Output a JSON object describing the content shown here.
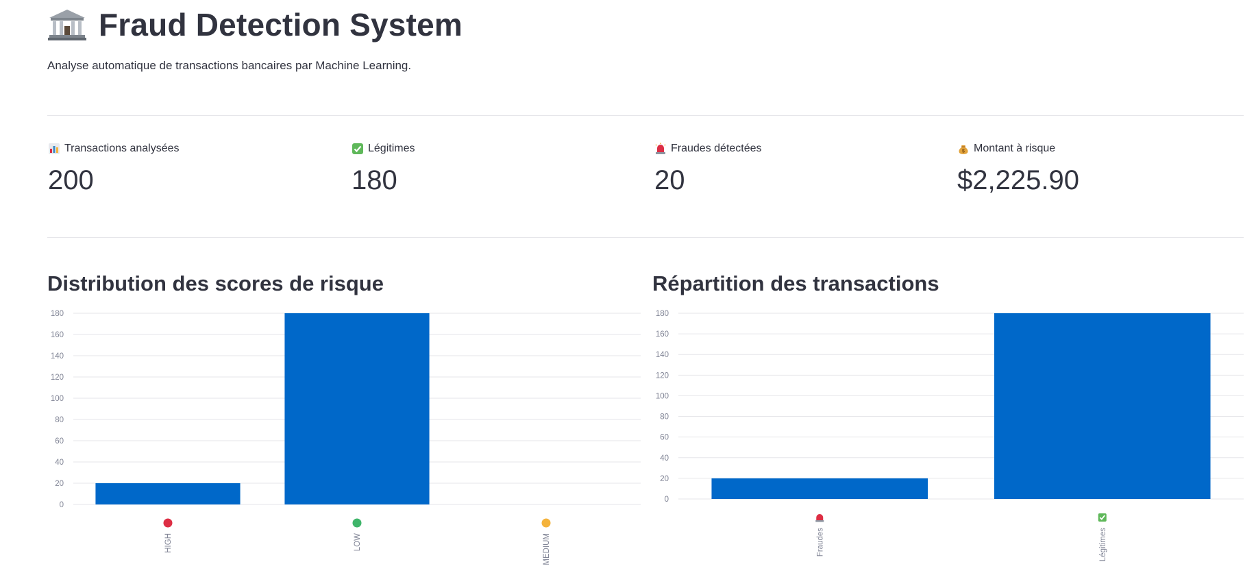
{
  "page": {
    "title": "Fraud Detection System",
    "subtitle": "Analyse automatique de transactions bancaires par Machine Learning."
  },
  "metrics": [
    {
      "icon": "bar-chart-icon",
      "label": "Transactions analysées",
      "value": "200"
    },
    {
      "icon": "check-mark-icon",
      "label": "Légitimes",
      "value": "180"
    },
    {
      "icon": "siren-icon",
      "label": "Fraudes détectées",
      "value": "20"
    },
    {
      "icon": "money-bag-icon",
      "label": "Montant à risque",
      "value": "$2,225.90"
    }
  ],
  "colors": {
    "bar": "#0068c9",
    "grid": "#e6e6ea",
    "text": "#31333f",
    "tick": "#808495",
    "high": "#dd2e44",
    "low": "#3fb56a",
    "medium": "#f4b33c"
  },
  "chart_data": [
    {
      "type": "bar",
      "title": "Distribution des scores de risque",
      "categories": [
        "HIGH",
        "LOW",
        "MEDIUM"
      ],
      "category_markers": [
        "red-circle-icon",
        "green-circle-icon",
        "yellow-circle-icon"
      ],
      "values": [
        20,
        180,
        0
      ],
      "yticks": [
        0,
        20,
        40,
        60,
        80,
        100,
        120,
        140,
        160,
        180
      ],
      "ylim": [
        0,
        180
      ],
      "grid": true
    },
    {
      "type": "bar",
      "title": "Répartition des transactions",
      "categories": [
        "Fraudes",
        "Légitimes"
      ],
      "category_markers": [
        "siren-icon",
        "check-mark-icon"
      ],
      "values": [
        20,
        180
      ],
      "yticks": [
        0,
        20,
        40,
        60,
        80,
        100,
        120,
        140,
        160,
        180
      ],
      "ylim": [
        0,
        180
      ],
      "grid": true
    }
  ]
}
